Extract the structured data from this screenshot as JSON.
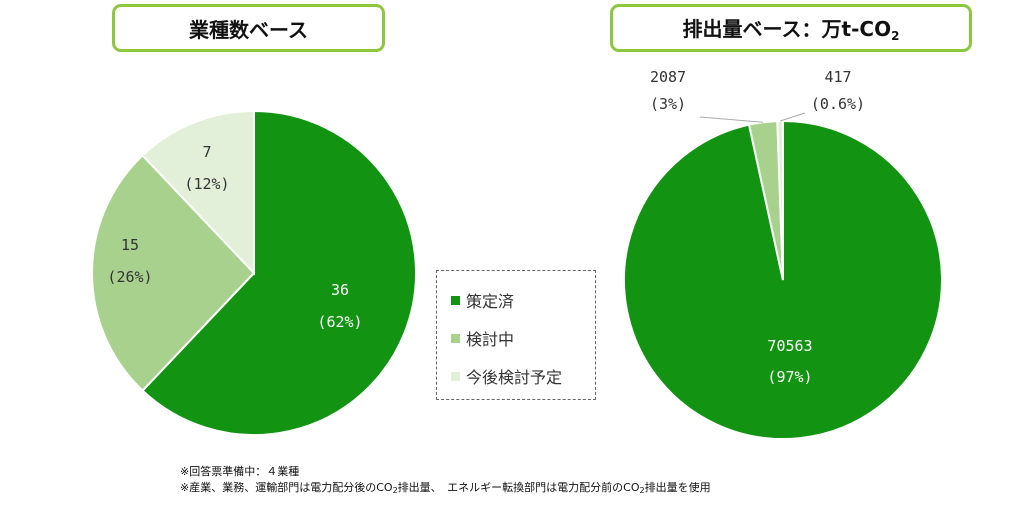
{
  "colors": {
    "sakutei": "#129412",
    "kento": "#a9d18e",
    "kongo": "#e2f0d9",
    "frame": "#8dc63f"
  },
  "legend": [
    "策定済",
    "検討中",
    "今後検討予定"
  ],
  "notes": {
    "line1": "※回答票準備中：４業種",
    "line2_a": "※産業、業務、運輸部門は電力配分後のCO",
    "line2_b": "排出量、　エネルギー転換部門は電力配分前のCO",
    "line2_c": "排出量を使用",
    "sub2": "2"
  },
  "chart_data": [
    {
      "type": "pie",
      "title": "業種数ベース",
      "categories": [
        "策定済",
        "検討中",
        "今後検討予定"
      ],
      "values": [
        36,
        15,
        7
      ],
      "value_labels": [
        "36",
        "15",
        "7"
      ],
      "percent_labels": [
        "(62%)",
        "(26%)",
        "(12%)"
      ],
      "legend_placement": "right",
      "start_angle": "12 o'clock",
      "direction": "clockwise"
    },
    {
      "type": "pie",
      "title_main": "排出量ベース：万t-CO",
      "title_sub": "2",
      "categories": [
        "策定済",
        "検討中",
        "今後検討予定"
      ],
      "values": [
        70563,
        2087,
        417
      ],
      "value_labels": [
        "70563",
        "2087",
        "417"
      ],
      "percent_labels": [
        "(97%)",
        "(3%)",
        "(0.6%)"
      ],
      "start_angle": "12 o'clock",
      "direction": "clockwise"
    }
  ]
}
